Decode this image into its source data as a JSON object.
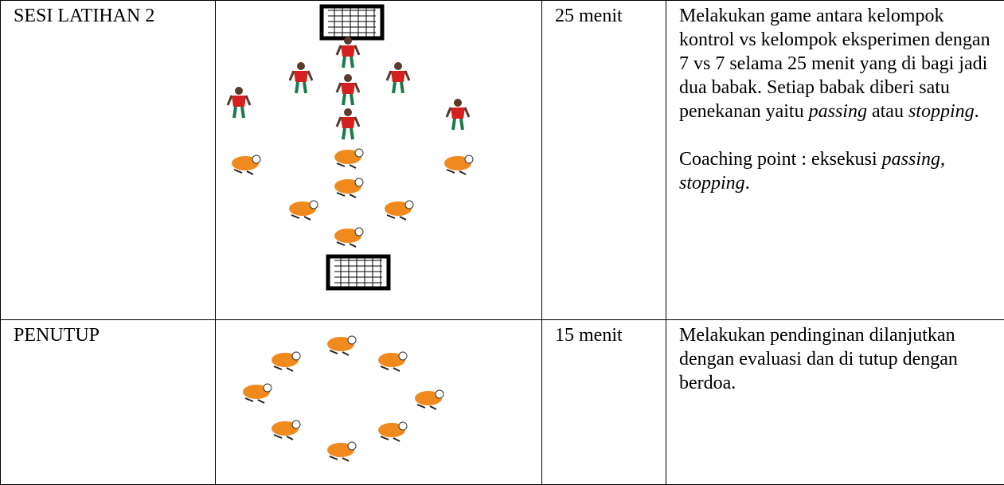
{
  "table": {
    "rows": [
      {
        "label": "SESI LATIHAN 2",
        "duration": "25 menit",
        "description": [
          [
            "Melakukan game antara kelompok kontrol vs kelompok eksperimen dengan 7 vs 7 selama 25 menit yang di bagi jadi dua babak. Setiap babak diberi satu penekanan yaitu ",
            "passing",
            " atau ",
            "stopping",
            "."
          ],
          [
            "Coaching point : eksekusi ",
            "passing, stopping",
            "."
          ]
        ]
      },
      {
        "label": "PENUTUP",
        "duration": "15 menit",
        "description": [
          [
            "Melakukan pendinginan dilanjutkan dengan evaluasi dan di tutup dengan berdoa."
          ]
        ]
      }
    ]
  }
}
